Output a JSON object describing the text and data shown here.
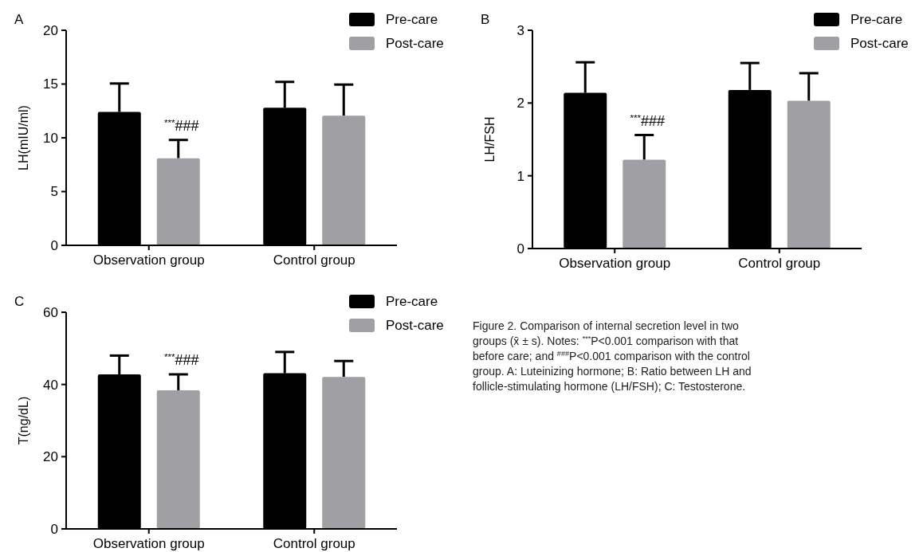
{
  "chart_data": [
    {
      "type": "bar",
      "title": "A",
      "ylabel": "LH(mIU/ml)",
      "categories": [
        "Observation group",
        "Control group"
      ],
      "ylim": [
        0,
        20
      ],
      "yticks": [
        0,
        5,
        10,
        15,
        20
      ],
      "legend": "top right",
      "grid": false,
      "series": [
        {
          "name": "Pre-care",
          "color": "#000000",
          "values": [
            12.4,
            12.8
          ],
          "errors": [
            [
              12.4,
              15.05
            ],
            [
              12.8,
              15.2
            ]
          ]
        },
        {
          "name": "Post-care",
          "color": "#a0a0a4",
          "values": [
            8.1,
            12.05
          ],
          "errors": [
            [
              8.1,
              9.8
            ],
            [
              12.05,
              14.95
            ]
          ]
        }
      ],
      "annotations": [
        "$^{***}$###"
      ]
    },
    {
      "type": "bar",
      "title": "B",
      "ylabel": "LH/FSH",
      "categories": [
        "Observation group",
        "Control group"
      ],
      "ylim": [
        0,
        3
      ],
      "yticks": [
        0,
        1,
        2,
        3
      ],
      "legend": "top right",
      "grid": false,
      "series": [
        {
          "name": "Pre-care",
          "color": "#000000",
          "values": [
            2.14,
            2.18
          ],
          "errors": [
            [
              2.14,
              2.56
            ],
            [
              2.18,
              2.55
            ]
          ]
        },
        {
          "name": "Post-care",
          "color": "#a0a0a4",
          "values": [
            1.22,
            2.03
          ],
          "errors": [
            [
              1.22,
              1.56
            ],
            [
              2.03,
              2.41
            ]
          ]
        }
      ],
      "annotations": [
        "$^{***}$###"
      ]
    },
    {
      "type": "bar",
      "title": "C",
      "ylabel": "T(ng/dL)",
      "categories": [
        "Observation group",
        "Control group"
      ],
      "ylim": [
        0,
        60
      ],
      "yticks": [
        0,
        20,
        40,
        60
      ],
      "legend": "top right",
      "grid": false,
      "series": [
        {
          "name": "Pre-care",
          "color": "#000000",
          "values": [
            42.8,
            43.1
          ],
          "errors": [
            [
              42.8,
              48.0
            ],
            [
              43.1,
              49.0
            ]
          ]
        },
        {
          "name": "Post-care",
          "color": "#a0a0a4",
          "values": [
            38.4,
            42.1
          ],
          "errors": [
            [
              38.4,
              42.8
            ],
            [
              42.1,
              46.5
            ]
          ]
        }
      ],
      "annotations": [
        "$^{***}$###",
        "Figure 2. Comparison of internal secretion level in two groups (x̄ ± s). Notes: $^{***}$P<0.001 comparison with that before care; and $^{###}$P<0.001 comparison with the control group. A: Luteinizing hormone; B: Ratio between LH and follicle-stimulating hormone (LH/FSH); C: Testosterone."
      ]
    }
  ]
}
